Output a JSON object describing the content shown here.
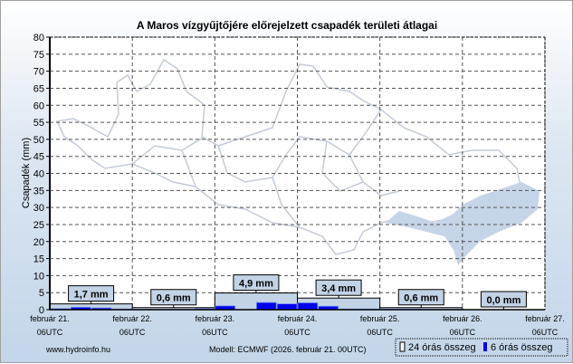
{
  "chart_data": {
    "type": "bar",
    "title": "A Maros vízgyűjtőjére előrejelzett csapadék területi átlagai",
    "ylabel": "Csapadék (mm)",
    "ylim": [
      0,
      80
    ],
    "yticks": [
      0,
      5,
      10,
      15,
      20,
      25,
      30,
      35,
      40,
      45,
      50,
      55,
      60,
      65,
      70,
      75,
      80
    ],
    "xticks": [
      [
        "február 21.",
        "06UTC"
      ],
      [
        "február 22.",
        "06UTC"
      ],
      [
        "február 23.",
        "06UTC"
      ],
      [
        "február 24.",
        "06UTC"
      ],
      [
        "február 25.",
        "06UTC"
      ],
      [
        "február 26.",
        "06UTC"
      ],
      [
        "február 27.",
        "06UTC"
      ]
    ],
    "grid": true,
    "series": [
      {
        "name": "24 órás összeg",
        "values": [
          1.7,
          0.6,
          4.9,
          3.4,
          0.6,
          0.0
        ],
        "labels": [
          "1,7 mm",
          "0,6 mm",
          "4,9 mm",
          "3,4 mm",
          "0,6 mm",
          "0,0 mm"
        ],
        "color": "#c3d3e6"
      },
      {
        "name": "6 órás összeg",
        "values": [
          0.3,
          0.7,
          0.5,
          0.2,
          0.1,
          0.1,
          0.1,
          0.3,
          1.1,
          0.0,
          2.1,
          1.7,
          2.0,
          1.0,
          0.2,
          0.2,
          0.2,
          0.2,
          0.1,
          0.1,
          0.0,
          0.0,
          0.0,
          0.0
        ],
        "color": "#0000ee"
      }
    ],
    "legend_position": "bottom-right"
  },
  "footer": {
    "site": "www.hydroinfo.hu",
    "model": "Modell: ECMWF (2026. február 21. 00UTC)"
  }
}
